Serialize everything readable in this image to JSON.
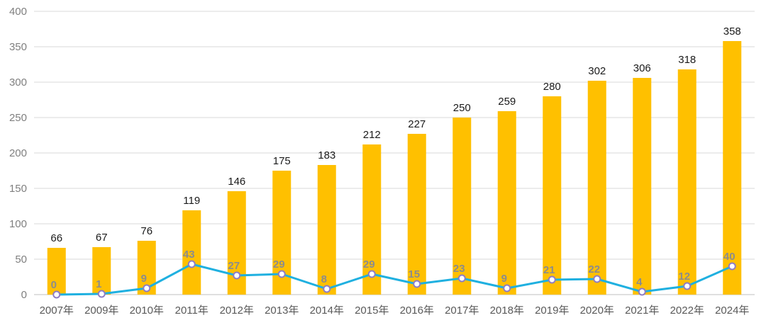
{
  "chart_data": {
    "type": "bar",
    "categories": [
      "2007年",
      "2009年",
      "2010年",
      "2011年",
      "2012年",
      "2013年",
      "2014年",
      "2015年",
      "2016年",
      "2017年",
      "2018年",
      "2019年",
      "2020年",
      "2021年",
      "2022年",
      "2024年"
    ],
    "series": [
      {
        "type": "bar",
        "values": [
          66,
          67,
          76,
          119,
          146,
          175,
          183,
          212,
          227,
          250,
          259,
          280,
          302,
          306,
          318,
          358
        ],
        "color": "#FFC000"
      },
      {
        "type": "line",
        "values": [
          0,
          1,
          9,
          43,
          27,
          29,
          8,
          29,
          15,
          23,
          9,
          21,
          22,
          4,
          12,
          40
        ],
        "color": "#1FB0E0",
        "marker_fill": "#ffffff",
        "marker_stroke": "#8E7CC3"
      }
    ],
    "y_ticks": [
      "0",
      "50",
      "100",
      "150",
      "200",
      "250",
      "300",
      "350",
      "400"
    ],
    "ylim": [
      0,
      400
    ],
    "grid": true,
    "legend": "none",
    "title": "",
    "xlabel": "",
    "ylabel": ""
  }
}
